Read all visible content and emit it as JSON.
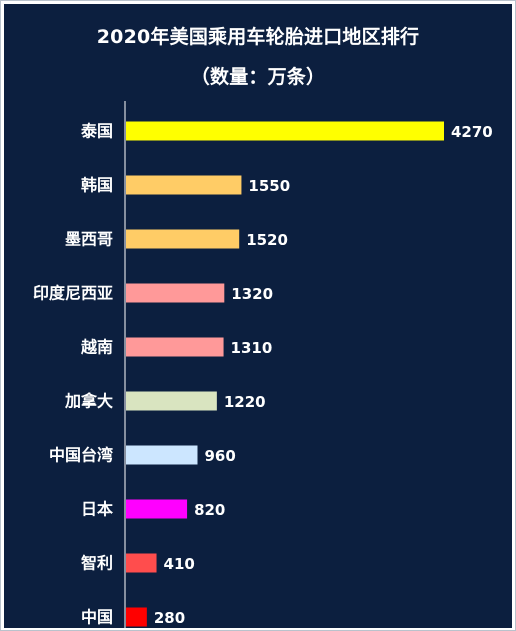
{
  "chart_data": {
    "type": "bar",
    "orientation": "horizontal",
    "title": "2020年美国乘用车轮胎进口地区排行",
    "subtitle": "（数量：万条）",
    "categories": [
      "泰国",
      "韩国",
      "墨西哥",
      "印度尼西亚",
      "越南",
      "加拿大",
      "中国台湾",
      "日本",
      "智利",
      "中国"
    ],
    "values": [
      4270,
      1550,
      1520,
      1320,
      1310,
      1220,
      960,
      820,
      410,
      280
    ],
    "value_labels": [
      "4270",
      "1550",
      "1520",
      "1320",
      "1310",
      "1220",
      "960",
      "820",
      "410",
      "280"
    ],
    "bar_colors": [
      "#ffff00",
      "#ffcc66",
      "#ffcc66",
      "#ff9999",
      "#ff9999",
      "#d9e4c0",
      "#cce6ff",
      "#ff00ff",
      "#ff4d4d",
      "#ff0000"
    ],
    "xlim": [
      0,
      4270
    ],
    "grid": false,
    "legend": "none"
  },
  "colors": {
    "background": "#0c1f3f",
    "text": "#ffffff",
    "axis": "#ffffff"
  }
}
